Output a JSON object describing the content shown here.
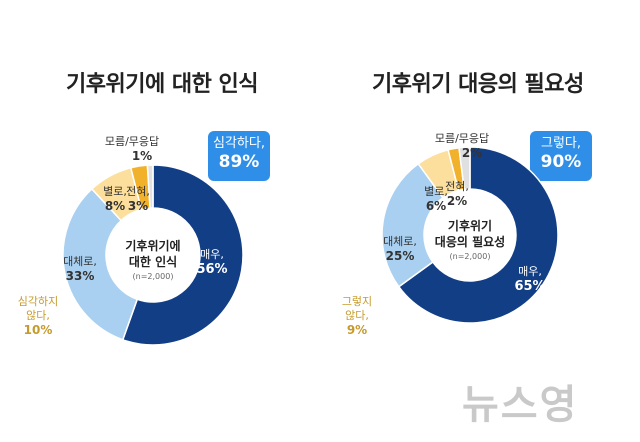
{
  "chart_data": [
    {
      "type": "pie",
      "title": "기후위기에 대한 인식",
      "center_label": [
        "기후위기에",
        "대한 인식"
      ],
      "n_label": "(n=2,000)",
      "highlight": {
        "label": "심각하다,",
        "value": "89%"
      },
      "slices": [
        {
          "label": "매우,",
          "value": 56,
          "color": "#123e86"
        },
        {
          "label": "대체로,",
          "value": 33,
          "color": "#a9d0f1"
        },
        {
          "label": "별로,",
          "value": 8,
          "color": "#fcdf9c"
        },
        {
          "label": "전혀,",
          "value": 3,
          "color": "#f1b12b"
        },
        {
          "label": "모름/무응답",
          "value": 1,
          "color": "#e0e0e0"
        }
      ],
      "group_label": [
        "심각하지",
        "않다,",
        "10%"
      ]
    },
    {
      "type": "pie",
      "title": "기후위기 대응의 필요성",
      "center_label": [
        "기후위기",
        "대응의 필요성"
      ],
      "n_label": "(n=2,000)",
      "highlight": {
        "label": "그렇다,",
        "value": "90%"
      },
      "slices": [
        {
          "label": "매우,",
          "value": 65,
          "color": "#123e86"
        },
        {
          "label": "대체로,",
          "value": 25,
          "color": "#a9d0f1"
        },
        {
          "label": "별로,",
          "value": 6,
          "color": "#fcdf9c"
        },
        {
          "label": "전혀,",
          "value": 2,
          "color": "#f1b12b"
        },
        {
          "label": "모름/무응답",
          "value": 2,
          "color": "#e0e0e0"
        }
      ],
      "group_label": [
        "그렇지",
        "않다,",
        "9%"
      ]
    }
  ],
  "watermark": "뉴스영"
}
